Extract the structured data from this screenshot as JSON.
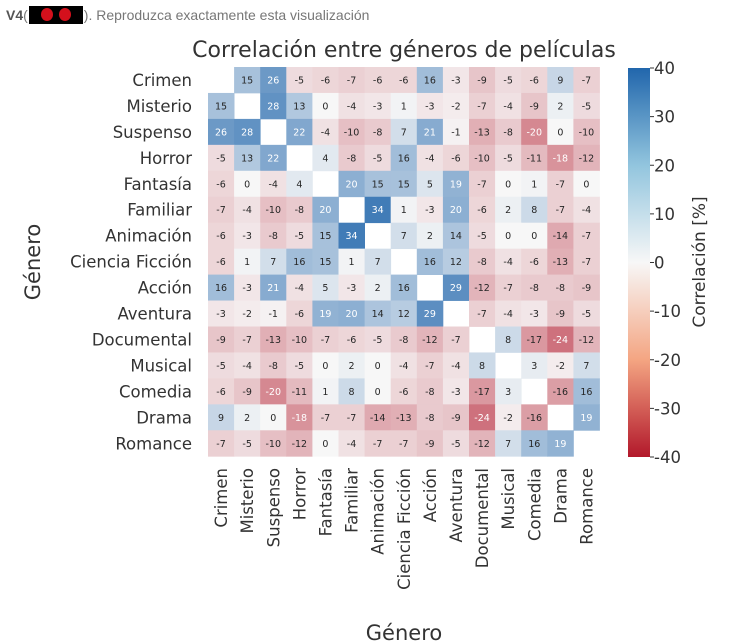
{
  "prompt": {
    "label": "V4",
    "open": "(",
    "rest": "). Reproduzca exactamente esta visualización",
    "thumbnail_icon": "red-figure-thumbnail-icon"
  },
  "chart_data": {
    "type": "heatmap",
    "title": "Correlación entre géneros de películas",
    "xlabel": "Género",
    "ylabel": "Género",
    "colorbar_label": "Correlación [%]",
    "zlim": [
      -40,
      40
    ],
    "colorbar_ticks": [
      40,
      30,
      20,
      10,
      0,
      -10,
      -20,
      -30,
      -40
    ],
    "colormap": {
      "low": "#b2182b",
      "mid": "#f7f7f7",
      "high": "#2166ac"
    },
    "genres": [
      "Crimen",
      "Misterio",
      "Suspenso",
      "Horror",
      "Fantasía",
      "Familiar",
      "Animación",
      "Ciencia Ficción",
      "Acción",
      "Aventura",
      "Documental",
      "Musical",
      "Comedia",
      "Drama",
      "Romance"
    ],
    "matrix": [
      [
        null,
        15,
        26,
        -5,
        -6,
        -7,
        -6,
        -6,
        16,
        -3,
        -9,
        -5,
        -6,
        9,
        -7
      ],
      [
        15,
        null,
        28,
        13,
        0,
        -4,
        -3,
        1,
        -3,
        -2,
        -7,
        -4,
        -9,
        2,
        -5
      ],
      [
        26,
        28,
        null,
        22,
        -4,
        -10,
        -8,
        7,
        21,
        -1,
        -13,
        -8,
        -20,
        0,
        -10
      ],
      [
        -5,
        13,
        22,
        null,
        4,
        -8,
        -5,
        16,
        -4,
        -6,
        -10,
        -5,
        -11,
        -18,
        -12
      ],
      [
        -6,
        0,
        -4,
        4,
        null,
        20,
        15,
        15,
        5,
        19,
        -7,
        0,
        1,
        -7,
        0
      ],
      [
        -7,
        -4,
        -10,
        -8,
        20,
        null,
        34,
        1,
        -3,
        20,
        -6,
        2,
        8,
        -7,
        -4
      ],
      [
        -6,
        -3,
        -8,
        -5,
        15,
        34,
        null,
        7,
        2,
        14,
        -5,
        0,
        0,
        -14,
        -7
      ],
      [
        -6,
        1,
        7,
        16,
        15,
        1,
        7,
        null,
        16,
        12,
        -8,
        -4,
        -6,
        -13,
        -7
      ],
      [
        16,
        -3,
        21,
        -4,
        5,
        -3,
        2,
        16,
        null,
        29,
        -12,
        -7,
        -8,
        -8,
        -9
      ],
      [
        -3,
        -2,
        -1,
        -6,
        19,
        20,
        14,
        12,
        29,
        null,
        -7,
        -4,
        -3,
        -9,
        -5
      ],
      [
        -9,
        -7,
        -13,
        -10,
        -7,
        -6,
        -5,
        -8,
        -12,
        -7,
        null,
        8,
        -17,
        -24,
        -12
      ],
      [
        -5,
        -4,
        -8,
        -5,
        0,
        2,
        0,
        -4,
        -7,
        -4,
        8,
        null,
        3,
        -2,
        7
      ],
      [
        -6,
        -9,
        -20,
        -11,
        1,
        8,
        0,
        -6,
        -8,
        -3,
        -17,
        3,
        null,
        -16,
        16
      ],
      [
        9,
        2,
        0,
        -18,
        -7,
        -7,
        -14,
        -13,
        -8,
        -9,
        -24,
        -2,
        -16,
        null,
        19
      ],
      [
        -7,
        -5,
        -10,
        -12,
        0,
        -4,
        -7,
        -7,
        -9,
        -5,
        -12,
        7,
        16,
        19,
        null
      ]
    ]
  }
}
